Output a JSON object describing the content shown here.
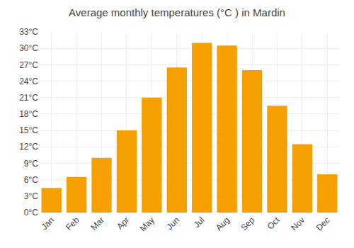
{
  "chart_data": {
    "type": "bar",
    "title": "Average monthly temperatures (°C ) in Mardin",
    "categories": [
      "Jan",
      "Feb",
      "Mar",
      "Apr",
      "May",
      "Jun",
      "Jul",
      "Aug",
      "Sep",
      "Oct",
      "Nov",
      "Dec"
    ],
    "values": [
      4.5,
      6.5,
      10.0,
      15.0,
      21.0,
      26.5,
      31.0,
      30.5,
      26.0,
      19.5,
      12.5,
      7.0
    ],
    "color": "#F5A000",
    "ylim": [
      0,
      33
    ],
    "yticks": [
      {
        "value": 0,
        "label": "0°C"
      },
      {
        "value": 3,
        "label": "3°C"
      },
      {
        "value": 6,
        "label": "6°C"
      },
      {
        "value": 9,
        "label": "9°C"
      },
      {
        "value": 12,
        "label": "12°C"
      },
      {
        "value": 15,
        "label": "15°C"
      },
      {
        "value": 18,
        "label": "18°C"
      },
      {
        "value": 21,
        "label": "21°C"
      },
      {
        "value": 24,
        "label": "24°C"
      },
      {
        "value": 27,
        "label": "27°C"
      },
      {
        "value": 30,
        "label": "30°C"
      },
      {
        "value": 33,
        "label": "33°C"
      }
    ],
    "grid": true
  }
}
